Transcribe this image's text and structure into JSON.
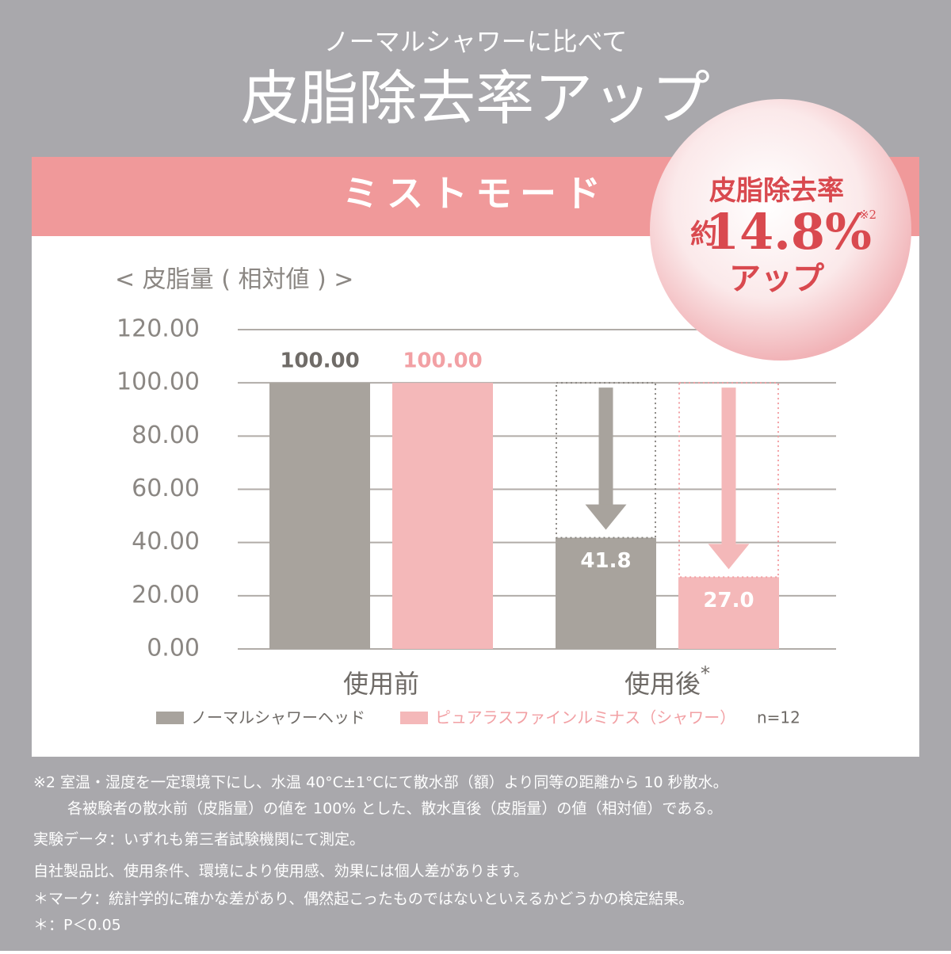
{
  "header": {
    "subtitle": "ノーマルシャワーに比べて",
    "title": "皮脂除去率アップ"
  },
  "banner": "ミストモード",
  "badge": {
    "line1": "皮脂除去率",
    "prefix": "約",
    "figure": "14.8%",
    "note": "※2",
    "line3": "アップ"
  },
  "chart_data": {
    "type": "bar",
    "y_label": "< 皮脂量 ( 相対値 ) >",
    "categories": [
      "使用前",
      "使用後"
    ],
    "category_marks": [
      null,
      "*"
    ],
    "series": [
      {
        "name": "ノーマルシャワーヘッド",
        "color": "#a8a39d",
        "label_color": "#6f6b67",
        "values": [
          100.0,
          41.8
        ],
        "value_labels": [
          "100.00",
          "41.8"
        ]
      },
      {
        "name": "ピュアラスファインルミナス（シャワー）",
        "color": "#f4b8b9",
        "label_color": "#f2a0a4",
        "values": [
          100.0,
          27.0
        ],
        "value_labels": [
          "100.00",
          "27.0"
        ]
      }
    ],
    "legend_note": "n=12",
    "ylim": [
      0,
      120
    ],
    "yticks": [
      {
        "value": 0,
        "label": "0.00"
      },
      {
        "value": 20,
        "label": "20.00"
      },
      {
        "value": 40,
        "label": "40.00"
      },
      {
        "value": 60,
        "label": "60.00"
      },
      {
        "value": 80,
        "label": "80.00"
      },
      {
        "value": 100,
        "label": "100.00"
      },
      {
        "value": 120,
        "label": "120.00"
      }
    ],
    "grid": true
  },
  "footnotes": [
    "※2 室温・湿度を一定環境下にし、水温 40°C±1°Cにて散水部（額）より同等の距離から 10 秒散水。",
    "各被験者の散水前（皮脂量）の値を 100% とした、散水直後（皮脂量）の値（相対値）である。",
    "実験データ：いずれも第三者試験機関にて測定。",
    "自社製品比、使用条件、環境により使用感、効果には個人差があります。",
    "＊マーク：統計学的に確かな差があり、偶然起こったものではないといえるかどうかの検定結果。",
    "＊：P＜0.05"
  ]
}
